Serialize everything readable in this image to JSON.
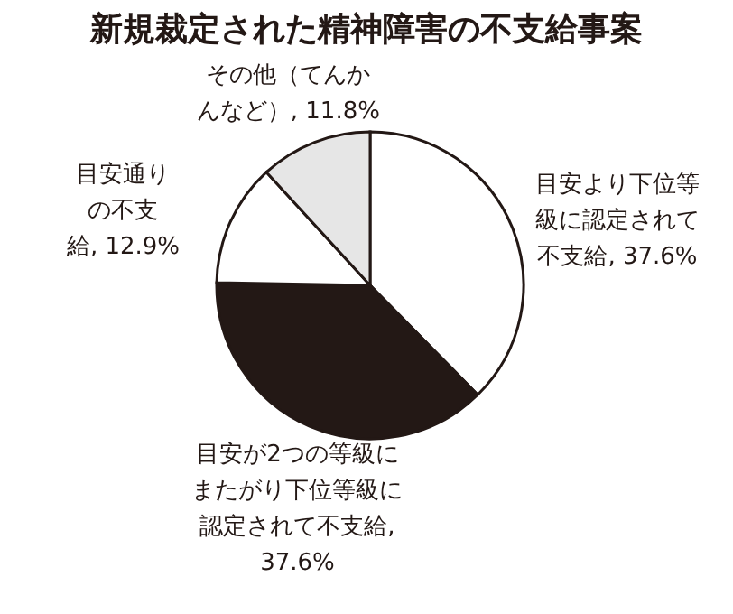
{
  "chart_data": {
    "type": "pie",
    "title": "新規裁定された精神障害の不支給事案",
    "categories": [
      "目安より下位等級に認定されて不支給, 37.6%",
      "目安が2つの等級にまたがり下位等級に認定されて不支給, 37.6%",
      "目安通りの不支給, 12.9%",
      "その他（てんかんなど）, 11.8%"
    ],
    "values": [
      37.6,
      37.6,
      12.9,
      11.8
    ],
    "colors": [
      "#ffffff",
      "#231815",
      "#ffffff",
      "#e6e6e6"
    ]
  }
}
